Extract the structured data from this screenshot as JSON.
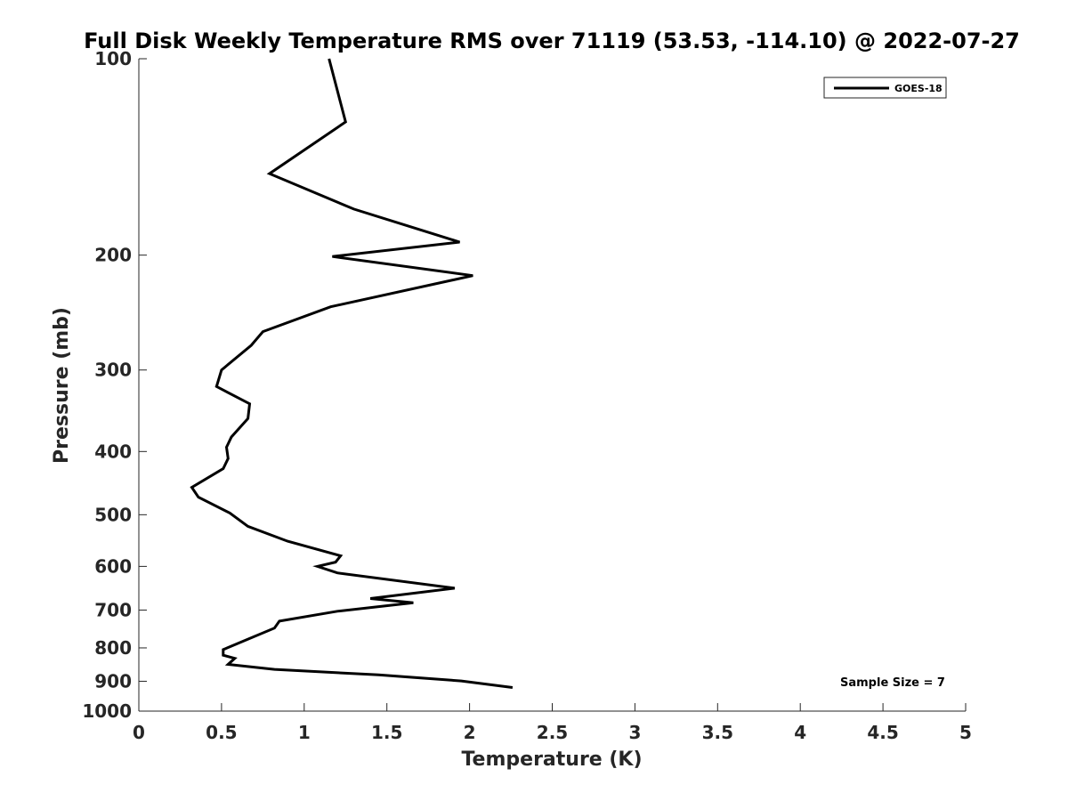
{
  "chart_data": {
    "type": "line",
    "title": "Full Disk Weekly Temperature RMS over 71119 (53.53, -114.10) @ 2022-07-27",
    "xlabel": "Temperature (K)",
    "ylabel": "Pressure (mb)",
    "xlim": [
      0,
      5
    ],
    "ylim": [
      100,
      1000
    ],
    "y_scale": "log",
    "y_reversed": true,
    "x_ticks": [
      "0",
      "0.5",
      "1",
      "1.5",
      "2",
      "2.5",
      "3",
      "3.5",
      "4",
      "4.5",
      "5"
    ],
    "y_ticks": [
      "100",
      "200",
      "300",
      "400",
      "500",
      "600",
      "700",
      "800",
      "900",
      "1000"
    ],
    "grid": false,
    "legend_position": "top-right",
    "annotation": "Sample Size = 7",
    "series": [
      {
        "name": "GOES-18",
        "color": "#000000",
        "x": [
          1.15,
          1.25,
          0.79,
          1.3,
          1.94,
          1.17,
          2.02,
          1.16,
          0.75,
          0.68,
          0.5,
          0.47,
          0.67,
          0.66,
          0.56,
          0.53,
          0.54,
          0.51,
          0.32,
          0.36,
          0.55,
          0.66,
          0.9,
          1.22,
          1.19,
          1.08,
          1.2,
          1.91,
          1.4,
          1.66,
          1.2,
          0.85,
          0.82,
          0.67,
          0.51,
          0.51,
          0.58,
          0.54,
          0.82,
          1.45,
          1.95,
          2.26
        ],
        "y": [
          100,
          125,
          150,
          170,
          191,
          201,
          215,
          240,
          262,
          275,
          300,
          318,
          338,
          356,
          380,
          394,
          410,
          425,
          454,
          470,
          497,
          521,
          549,
          578,
          591,
          600,
          614,
          648,
          672,
          682,
          703,
          728,
          746,
          774,
          805,
          821,
          830,
          848,
          863,
          880,
          899,
          920
        ]
      }
    ]
  }
}
